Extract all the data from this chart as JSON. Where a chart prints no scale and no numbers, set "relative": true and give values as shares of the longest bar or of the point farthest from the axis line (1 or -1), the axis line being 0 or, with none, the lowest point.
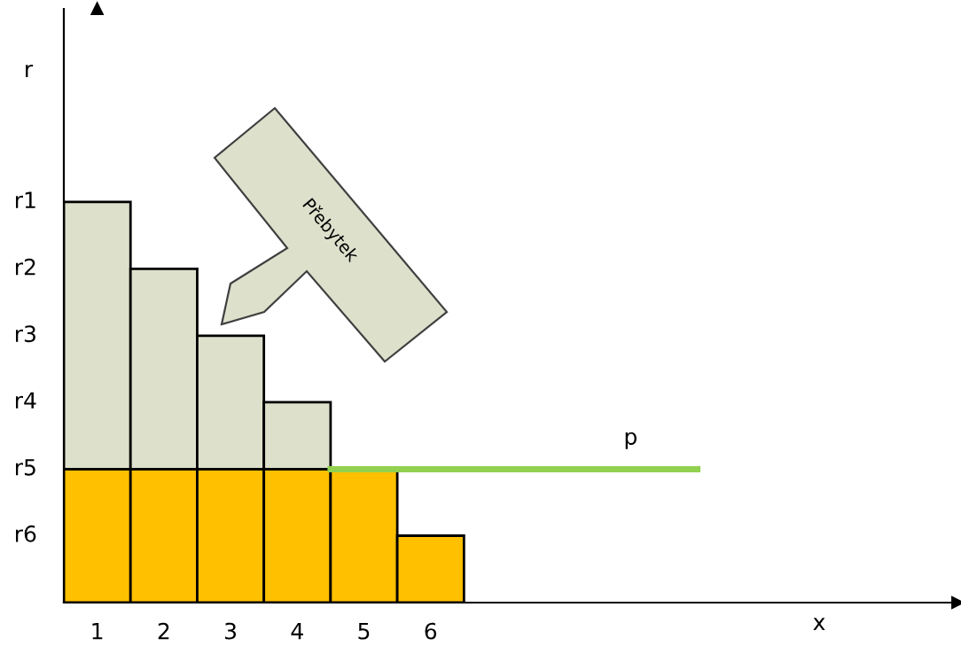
{
  "chart_data": {
    "type": "bar",
    "relative": true,
    "stacked": true,
    "categories": [
      "1",
      "2",
      "3",
      "4",
      "5",
      "6"
    ],
    "series": [
      {
        "color": "#ffc000",
        "values": [
          0.333,
          0.333,
          0.333,
          0.333,
          0.333,
          0.167
        ]
      },
      {
        "color": "#dde1cc",
        "values": [
          0.667,
          0.5,
          0.333,
          0.167,
          null,
          null
        ]
      }
    ],
    "ref_lines": [
      {
        "axis": "y",
        "value": 0.333,
        "label": "p",
        "color": "#92d050"
      }
    ],
    "annotations": [
      "r1",
      "r2",
      "r3",
      "r4",
      "r5",
      "r6",
      "Přebytek",
      "x",
      "r"
    ],
    "tick_labels": "x",
    "grid": false
  }
}
